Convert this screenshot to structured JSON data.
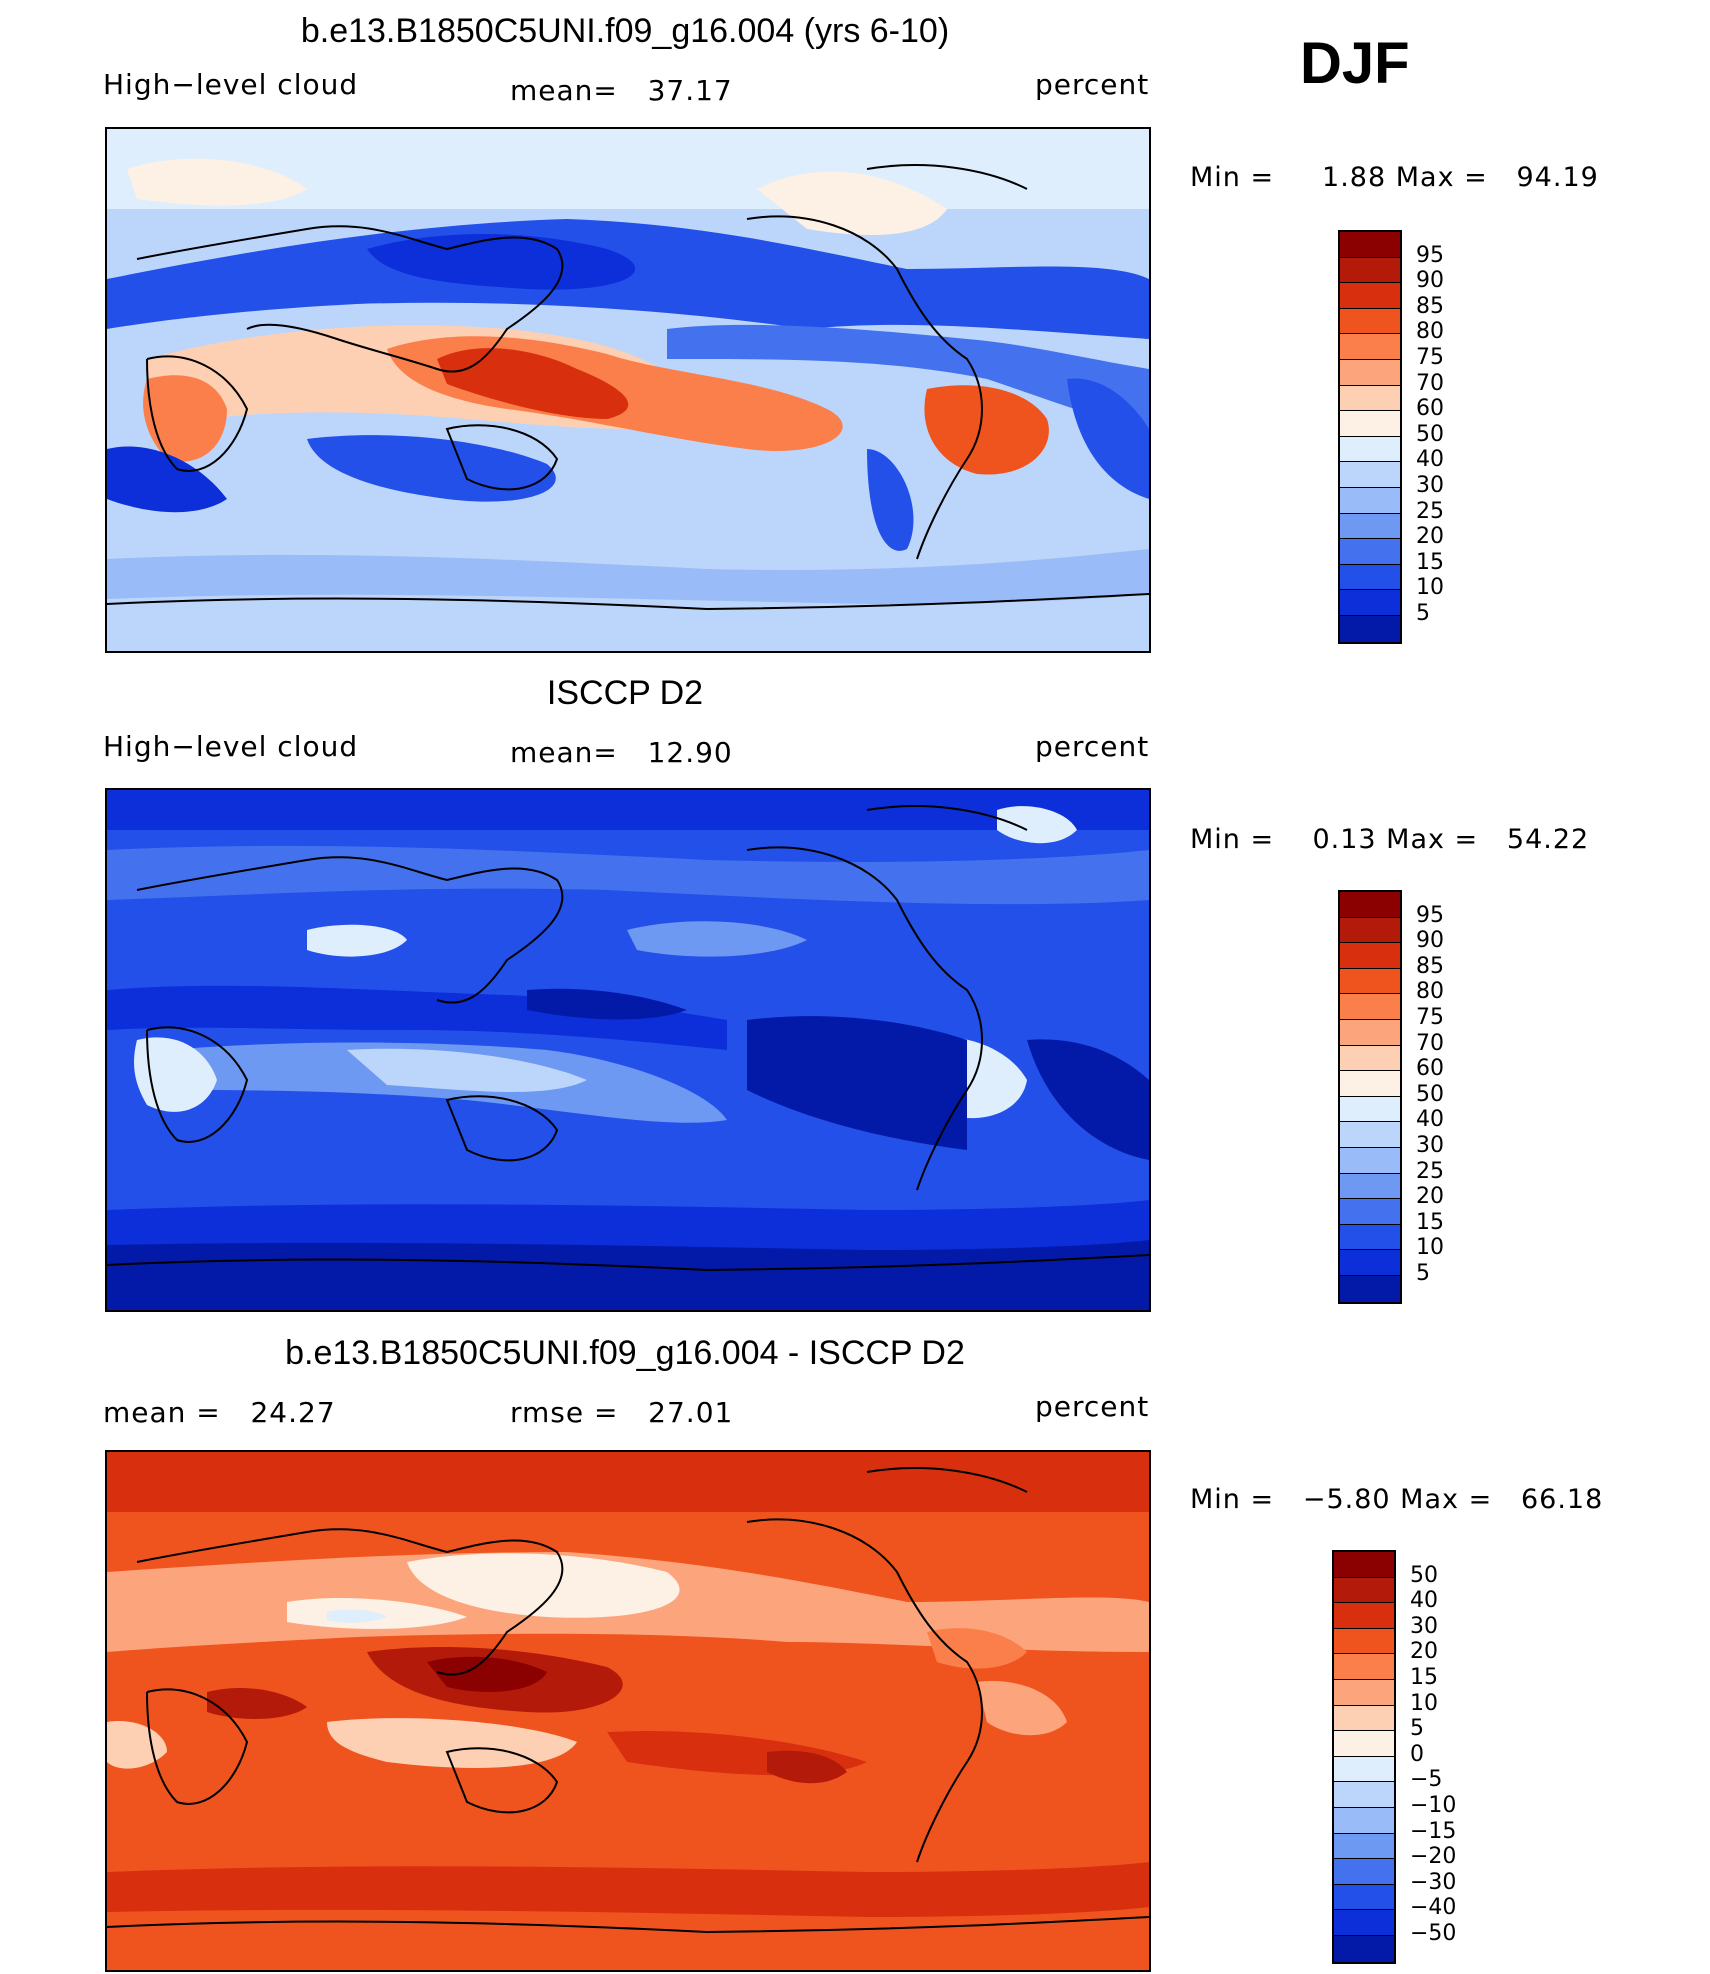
{
  "season": "DJF",
  "panels": [
    {
      "title": "b.e13.B1850C5UNI.f09_g16.004 (yrs 6-10)",
      "left_label": "High−level cloud",
      "center_label": "mean=   37.17",
      "right_label": "percent",
      "minmax": "Min =     1.88 Max =   94.19",
      "colorbar": {
        "colors": [
          "#8b0000",
          "#b41a0a",
          "#d8300f",
          "#f0541e",
          "#fb7f4b",
          "#fca57d",
          "#fdd0b4",
          "#fdf0e4",
          "#deeefd",
          "#bcd6fb",
          "#99bbf7",
          "#6e99f2",
          "#4472ee",
          "#2450ea",
          "#0c2fd9",
          "#031aa8"
        ],
        "ticks": [
          "95",
          "90",
          "85",
          "80",
          "75",
          "70",
          "60",
          "50",
          "40",
          "30",
          "25",
          "20",
          "15",
          "10",
          "5"
        ]
      }
    },
    {
      "title": "ISCCP D2",
      "left_label": "High−level cloud",
      "center_label": "mean=   12.90",
      "right_label": "percent",
      "minmax": "Min =    0.13 Max =   54.22",
      "colorbar": {
        "colors": [
          "#8b0000",
          "#b41a0a",
          "#d8300f",
          "#f0541e",
          "#fb7f4b",
          "#fca57d",
          "#fdd0b4",
          "#fdf0e4",
          "#deeefd",
          "#bcd6fb",
          "#99bbf7",
          "#6e99f2",
          "#4472ee",
          "#2450ea",
          "#0c2fd9",
          "#031aa8"
        ],
        "ticks": [
          "95",
          "90",
          "85",
          "80",
          "75",
          "70",
          "60",
          "50",
          "40",
          "30",
          "25",
          "20",
          "15",
          "10",
          "5"
        ]
      }
    },
    {
      "title": "b.e13.B1850C5UNI.f09_g16.004 - ISCCP D2",
      "left_label": "mean =   24.27",
      "center_label": "rmse =   27.01",
      "right_label": "percent",
      "minmax": "Min =   −5.80 Max =   66.18",
      "colorbar": {
        "colors": [
          "#8b0000",
          "#b41a0a",
          "#d8300f",
          "#f0541e",
          "#fb7f4b",
          "#fca57d",
          "#fdd0b4",
          "#fdf0e4",
          "#deeefd",
          "#bcd6fb",
          "#99bbf7",
          "#6e99f2",
          "#4472ee",
          "#2450ea",
          "#0c2fd9",
          "#031aa8"
        ],
        "ticks": [
          "50",
          "40",
          "30",
          "20",
          "15",
          "10",
          "5",
          "0",
          "−5",
          "−10",
          "−15",
          "−20",
          "−30",
          "−40",
          "−50"
        ]
      }
    }
  ]
}
